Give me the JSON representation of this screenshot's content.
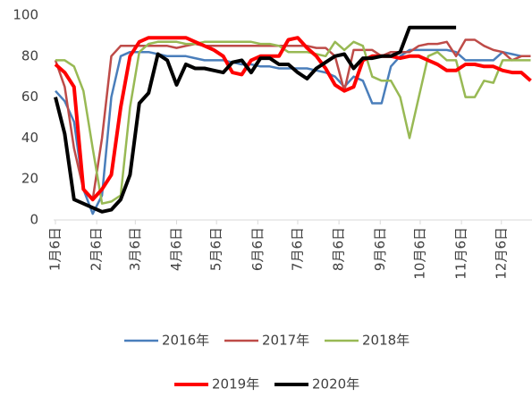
{
  "chart_data": {
    "type": "line",
    "x": [
      0,
      7,
      14,
      21,
      28,
      35,
      42,
      49,
      56,
      63,
      70,
      77,
      84,
      91,
      98,
      105,
      112,
      119,
      126,
      133,
      140,
      147,
      154,
      161,
      168,
      175,
      182,
      189,
      196,
      203,
      210,
      217,
      224,
      231,
      238,
      245,
      252,
      259,
      266,
      273,
      280,
      287,
      294,
      301,
      308,
      315,
      322,
      329,
      336,
      343,
      350,
      357
    ],
    "xlim": [
      0,
      358
    ],
    "xticks": [
      {
        "value": 0,
        "label": "1月6日"
      },
      {
        "value": 31,
        "label": "2月6日"
      },
      {
        "value": 60,
        "label": "3月6日"
      },
      {
        "value": 91,
        "label": "4月6日"
      },
      {
        "value": 121,
        "label": "5月6日"
      },
      {
        "value": 152,
        "label": "6月6日"
      },
      {
        "value": 182,
        "label": "7月6日"
      },
      {
        "value": 213,
        "label": "8月6日"
      },
      {
        "value": 244,
        "label": "9月6日"
      },
      {
        "value": 274,
        "label": "10月6日"
      },
      {
        "value": 305,
        "label": "11月6日"
      },
      {
        "value": 335,
        "label": "12月6日"
      }
    ],
    "ylim": [
      0,
      100
    ],
    "yticks": [
      0,
      20,
      40,
      60,
      80,
      100
    ],
    "series": [
      {
        "name": "2016年",
        "color": "#4a7ebb",
        "width": 2.5,
        "values": [
          63,
          58,
          48,
          15,
          3,
          12,
          60,
          80,
          82,
          82,
          82,
          81,
          80,
          80,
          80,
          79,
          78,
          78,
          78,
          77,
          76,
          76,
          75,
          75,
          74,
          74,
          74,
          74,
          73,
          72,
          70,
          65,
          70,
          68,
          57,
          57,
          75,
          80,
          83,
          83,
          83,
          83,
          83,
          82,
          78,
          78,
          78,
          78,
          82,
          81,
          80,
          80
        ]
      },
      {
        "name": "2017年",
        "color": "#be4b48",
        "width": 2.5,
        "values": [
          78,
          65,
          35,
          15,
          10,
          40,
          80,
          85,
          85,
          85,
          85,
          85,
          85,
          84,
          85,
          86,
          85,
          85,
          85,
          85,
          85,
          85,
          85,
          85,
          85,
          85,
          85,
          85,
          84,
          84,
          80,
          63,
          83,
          83,
          83,
          80,
          82,
          82,
          82,
          85,
          86,
          86,
          87,
          80,
          88,
          88,
          85,
          83,
          82,
          78,
          80,
          80
        ]
      },
      {
        "name": "2018年",
        "color": "#98b954",
        "width": 2.5,
        "values": [
          78,
          78,
          75,
          63,
          35,
          8,
          9,
          12,
          55,
          82,
          86,
          87,
          87,
          87,
          86,
          86,
          87,
          87,
          87,
          87,
          87,
          87,
          86,
          86,
          85,
          82,
          82,
          82,
          81,
          80,
          87,
          83,
          87,
          85,
          70,
          68,
          68,
          60,
          40,
          60,
          80,
          82,
          78,
          78,
          60,
          60,
          68,
          67,
          78,
          78,
          78,
          78
        ]
      },
      {
        "name": "2019年",
        "color": "#ff0000",
        "width": 4,
        "values": [
          76,
          72,
          65,
          15,
          10,
          15,
          22,
          55,
          80,
          87,
          89,
          89,
          89,
          89,
          89,
          87,
          85,
          83,
          80,
          72,
          71,
          78,
          80,
          80,
          80,
          88,
          89,
          84,
          80,
          74,
          66,
          63,
          65,
          78,
          80,
          80,
          80,
          79,
          80,
          80,
          78,
          76,
          73,
          73,
          76,
          76,
          75,
          75,
          73,
          72,
          72,
          68
        ]
      },
      {
        "name": "2020年",
        "color": "#000000",
        "width": 4,
        "values": [
          60,
          42,
          10,
          8,
          6,
          4,
          5,
          10,
          22,
          57,
          62,
          81,
          78,
          66,
          76,
          74,
          74,
          73,
          72,
          77,
          78,
          72,
          79,
          79,
          76,
          76,
          72,
          69,
          74,
          77,
          80,
          81,
          74,
          79,
          79,
          80,
          80,
          82,
          94,
          94,
          94,
          94,
          94,
          94,
          null,
          null,
          null,
          null,
          null,
          null,
          null,
          null
        ]
      }
    ]
  }
}
